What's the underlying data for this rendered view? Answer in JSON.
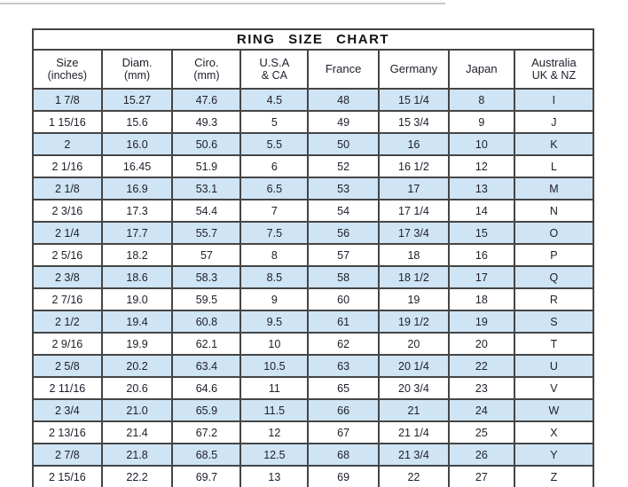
{
  "colors": {
    "row_alternate": "#cfe4f4",
    "border": "#454545",
    "text": "#20202c",
    "background": "#ffffff"
  },
  "chart_data": {
    "type": "table",
    "title": "RING SIZE CHART",
    "columns": [
      {
        "label": "Size",
        "sublabel": "(inches)"
      },
      {
        "label": "Diam.",
        "sublabel": "(mm)"
      },
      {
        "label": "Ciro.",
        "sublabel": "(mm)"
      },
      {
        "label": "U.S.A",
        "sublabel": "& CA"
      },
      {
        "label": "France",
        "sublabel": ""
      },
      {
        "label": "Germany",
        "sublabel": ""
      },
      {
        "label": "Japan",
        "sublabel": ""
      },
      {
        "label": "Australia",
        "sublabel": "UK & NZ"
      }
    ],
    "rows": [
      [
        "1 7/8",
        "15.27",
        "47.6",
        "4.5",
        "48",
        "15 1/4",
        "8",
        "I"
      ],
      [
        "1 15/16",
        "15.6",
        "49.3",
        "5",
        "49",
        "15 3/4",
        "9",
        "J"
      ],
      [
        "2",
        "16.0",
        "50.6",
        "5.5",
        "50",
        "16",
        "10",
        "K"
      ],
      [
        "2 1/16",
        "16.45",
        "51.9",
        "6",
        "52",
        "16 1/2",
        "12",
        "L"
      ],
      [
        "2 1/8",
        "16.9",
        "53.1",
        "6.5",
        "53",
        "17",
        "13",
        "M"
      ],
      [
        "2 3/16",
        "17.3",
        "54.4",
        "7",
        "54",
        "17 1/4",
        "14",
        "N"
      ],
      [
        "2 1/4",
        "17.7",
        "55.7",
        "7.5",
        "56",
        "17 3/4",
        "15",
        "O"
      ],
      [
        "2 5/16",
        "18.2",
        "57",
        "8",
        "57",
        "18",
        "16",
        "P"
      ],
      [
        "2 3/8",
        "18.6",
        "58.3",
        "8.5",
        "58",
        "18 1/2",
        "17",
        "Q"
      ],
      [
        "2 7/16",
        "19.0",
        "59.5",
        "9",
        "60",
        "19",
        "18",
        "R"
      ],
      [
        "2 1/2",
        "19.4",
        "60.8",
        "9.5",
        "61",
        "19 1/2",
        "19",
        "S"
      ],
      [
        "2 9/16",
        "19.9",
        "62.1",
        "10",
        "62",
        "20",
        "20",
        "T"
      ],
      [
        "2 5/8",
        "20.2",
        "63.4",
        "10.5",
        "63",
        "20 1/4",
        "22",
        "U"
      ],
      [
        "2 11/16",
        "20.6",
        "64.6",
        "11",
        "65",
        "20 3/4",
        "23",
        "V"
      ],
      [
        "2 3/4",
        "21.0",
        "65.9",
        "11.5",
        "66",
        "21",
        "24",
        "W"
      ],
      [
        "2 13/16",
        "21.4",
        "67.2",
        "12",
        "67",
        "21 1/4",
        "25",
        "X"
      ],
      [
        "2 7/8",
        "21.8",
        "68.5",
        "12.5",
        "68",
        "21 3/4",
        "26",
        "Y"
      ],
      [
        "2 15/16",
        "22.2",
        "69.7",
        "13",
        "69",
        "22",
        "27",
        "Z"
      ]
    ],
    "layout": {
      "alternating_row_shading": "odd rows shaded light blue starting with first data row",
      "grid": true
    }
  }
}
